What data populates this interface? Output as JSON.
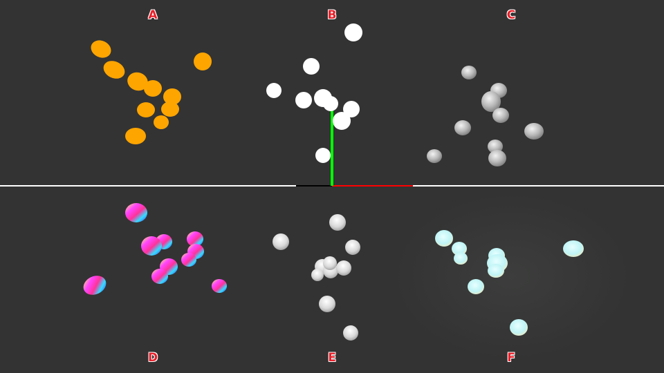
{
  "panels": [
    {
      "label": "A",
      "style": "flat-orange"
    },
    {
      "label": "B",
      "style": "flat-white"
    },
    {
      "label": "C",
      "style": "shaded-gray"
    },
    {
      "label": "D",
      "style": "rainbow-normals"
    },
    {
      "label": "E",
      "style": "shaded-white"
    },
    {
      "label": "F",
      "style": "glow-cyan"
    }
  ],
  "colors": {
    "background": "#333333",
    "label": "#e8202a",
    "divider": "#ffffff",
    "axis_y": "#00ff00",
    "axis_x": "#ff0000",
    "orange": "#ffa500"
  },
  "axes": {
    "x_axis": "red",
    "y_axis": "green",
    "shown_in_panel": "B"
  }
}
